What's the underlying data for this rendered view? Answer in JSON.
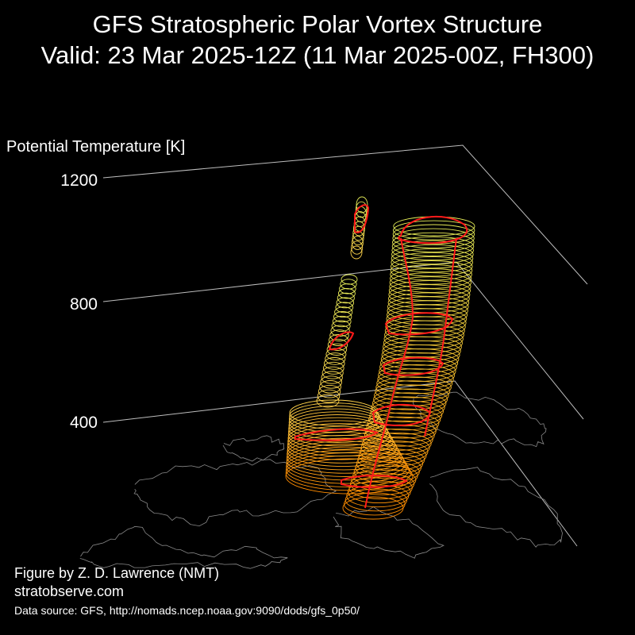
{
  "title_line1": "GFS Stratospheric Polar Vortex Structure",
  "title_line2": "Valid: 23 Mar 2025-12Z  (11 Mar 2025-00Z, FH300)",
  "credit": "Figure by Z. D. Lawrence (NMT)",
  "website": "stratobserve.com",
  "source": "Data source: GFS, http://nomads.ncep.noaa.gov:9090/dods/gfs_0p50/",
  "colors": {
    "background": "#000000",
    "axis": "#bdbdbd",
    "coast": "#8a8a8a",
    "low": "#ff8c00",
    "mid": "#ffd24a",
    "high": "#e8f05a",
    "contour": "#ff1a1a"
  },
  "chart_data": {
    "type": "3d-isosurface",
    "zlabel": "Potential Temperature [K]",
    "zticks": [
      "400",
      "800",
      "1200"
    ],
    "zlim": [
      250,
      1300
    ],
    "grid": true
  }
}
